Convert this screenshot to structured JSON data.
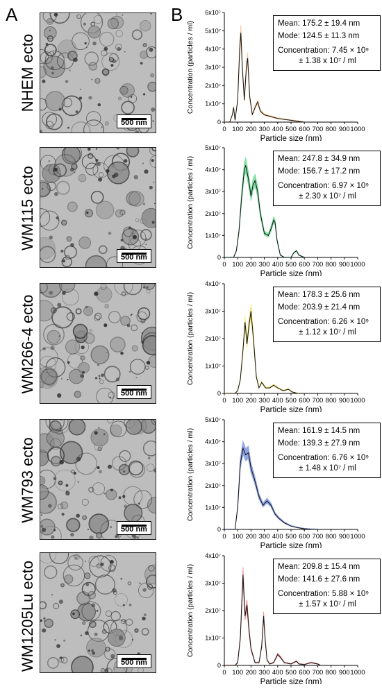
{
  "panel_labels": {
    "a": "A",
    "b": "B"
  },
  "scale_bar_label": "500 nm",
  "samples": [
    {
      "label": "NHEM ecto",
      "color": "#f0a050"
    },
    {
      "label": "WM115 ecto",
      "color": "#22c55e"
    },
    {
      "label": "WM266-4 ecto",
      "color": "#e8d21a"
    },
    {
      "label": "WM793 ecto",
      "color": "#3a5fcd"
    },
    {
      "label": "WM1205Lu ecto",
      "color": "#d0393a"
    }
  ],
  "chart_data": [
    {
      "type": "line",
      "sample": "NHEM ecto",
      "xlabel": "Particle size (nm)",
      "ylabel": "Concentration (particles / ml)",
      "xlim": [
        0,
        1000
      ],
      "ylim": [
        0,
        60000000
      ],
      "xticks": [
        "0",
        "100",
        "200",
        "300",
        "400",
        "500",
        "600",
        "700",
        "800",
        "900",
        "1000"
      ],
      "yticks": [
        "0",
        "1x10⁷",
        "2x10⁷",
        "3x10⁷",
        "4x10⁷",
        "5x10⁷",
        "6x10⁷"
      ],
      "stats": {
        "mean": "Mean: 175.2 ± 19.4 nm",
        "mode": "Mode: 124.5 ± 11.3 nm",
        "conc1": "Concentration: 7.45 × 10⁹",
        "conc2": "± 1.38 x 10⁷ / ml"
      },
      "x": [
        0,
        40,
        60,
        70,
        80,
        100,
        115,
        124,
        135,
        150,
        165,
        175,
        190,
        210,
        230,
        250,
        270,
        300,
        350,
        400,
        450,
        500,
        550,
        600
      ],
      "y": [
        0,
        0,
        4000000,
        8000000,
        1000000,
        12000000,
        40000000,
        49000000,
        30000000,
        12000000,
        30000000,
        35000000,
        14000000,
        4000000,
        8000000,
        11000000,
        6000000,
        4000000,
        3000000,
        2000000,
        1500000,
        1000000,
        500000,
        0
      ]
    },
    {
      "type": "line",
      "sample": "WM115 ecto",
      "xlabel": "Particle size (nm)",
      "ylabel": "Concentration (particles / ml)",
      "xlim": [
        0,
        1000
      ],
      "ylim": [
        0,
        50000000
      ],
      "xticks": [
        "0",
        "100",
        "200",
        "300",
        "400",
        "500",
        "600",
        "700",
        "800",
        "900",
        "1000"
      ],
      "yticks": [
        "0",
        "1x10⁷",
        "2x10⁷",
        "3x10⁷",
        "4x10⁷",
        "5x10⁷"
      ],
      "stats": {
        "mean": "Mean: 247.8 ± 34.9 nm",
        "mode": "Mode: 156.7 ± 17.2 nm",
        "conc1": "Concentration: 6.97 × 10⁹",
        "conc2": "± 2.30 x 10⁷ / ml"
      },
      "x": [
        0,
        70,
        90,
        110,
        130,
        150,
        160,
        180,
        200,
        215,
        230,
        250,
        270,
        300,
        330,
        350,
        370,
        380,
        395,
        420,
        450,
        500,
        520,
        540,
        560,
        600
      ],
      "y": [
        0,
        0,
        3000000,
        12000000,
        28000000,
        40000000,
        42000000,
        36000000,
        28000000,
        33000000,
        35000000,
        30000000,
        20000000,
        11000000,
        10000000,
        13000000,
        17000000,
        16000000,
        8000000,
        1000000,
        0,
        0,
        2000000,
        3000000,
        1000000,
        0
      ]
    },
    {
      "type": "line",
      "sample": "WM266-4 ecto",
      "xlabel": "Particle size (nm)",
      "ylabel": "Concentration (particles / ml)",
      "xlim": [
        0,
        1000
      ],
      "ylim": [
        0,
        40000000
      ],
      "xticks": [
        "0",
        "100",
        "200",
        "300",
        "400",
        "500",
        "600",
        "700",
        "800",
        "900",
        "1000"
      ],
      "yticks": [
        "0",
        "1x10⁷",
        "2x10⁷",
        "3x10⁷",
        "4x10⁷"
      ],
      "stats": {
        "mean": "Mean: 178.3 ± 25.6 nm",
        "mode": "Mode: 203.9 ± 21.4 nm",
        "conc1": "Concentration: 6.26 × 10⁹",
        "conc2": "± 1.12 x 10⁷ / ml"
      },
      "x": [
        0,
        80,
        100,
        120,
        140,
        155,
        170,
        185,
        200,
        220,
        240,
        260,
        280,
        310,
        340,
        370,
        400,
        440,
        480,
        510,
        550,
        600
      ],
      "y": [
        0,
        0,
        1000000,
        5000000,
        16000000,
        26000000,
        18000000,
        25000000,
        30000000,
        19000000,
        6000000,
        2000000,
        4000000,
        2000000,
        2000000,
        3000000,
        2000000,
        1000000,
        1500000,
        500000,
        0,
        0
      ]
    },
    {
      "type": "line",
      "sample": "WM793 ecto",
      "xlabel": "Particle size (nm)",
      "ylabel": "Concentration (particles / ml)",
      "xlim": [
        0,
        1000
      ],
      "ylim": [
        0,
        50000000
      ],
      "xticks": [
        "0",
        "100",
        "200",
        "300",
        "400",
        "500",
        "600",
        "700",
        "800",
        "900",
        "1000"
      ],
      "yticks": [
        "0",
        "1x10⁷",
        "2x10⁷",
        "3x10⁷",
        "4x10⁷",
        "5x10⁷"
      ],
      "stats": {
        "mean": "Mean: 161.9 ± 14.5 nm",
        "mode": "Mode: 139.3 ± 27.9 nm",
        "conc1": "Concentration: 6.76 × 10⁹",
        "conc2": "± 1.48 x 10⁷ / ml"
      },
      "x": [
        0,
        80,
        100,
        120,
        140,
        160,
        180,
        200,
        230,
        260,
        290,
        320,
        350,
        380,
        410,
        450,
        500,
        550,
        600,
        650,
        700
      ],
      "y": [
        0,
        0,
        10000000,
        30000000,
        37000000,
        34000000,
        35000000,
        28000000,
        22000000,
        15000000,
        11000000,
        13000000,
        11000000,
        7000000,
        5000000,
        3000000,
        1500000,
        800000,
        300000,
        100000,
        0
      ]
    },
    {
      "type": "line",
      "sample": "WM1205Lu ecto",
      "xlabel": "Particle size (nm)",
      "ylabel": "Concentration (particles / ml)",
      "xlim": [
        0,
        1000
      ],
      "ylim": [
        0,
        40000000
      ],
      "xticks": [
        "0",
        "100",
        "200",
        "300",
        "400",
        "500",
        "600",
        "700",
        "800",
        "900",
        "1000"
      ],
      "yticks": [
        "0",
        "1x10⁷",
        "2x10⁷",
        "3x10⁷",
        "4x10⁷"
      ],
      "stats": {
        "mean": "Mean: 209.8 ± 15.4 nm",
        "mode": "Mode: 141.6 ± 27.6 nm",
        "conc1": "Concentration: 5.88 × 10⁹",
        "conc2": "± 1.57 x 10⁷ / ml"
      },
      "x": [
        0,
        80,
        100,
        120,
        140,
        155,
        170,
        185,
        200,
        230,
        260,
        280,
        295,
        305,
        320,
        340,
        370,
        400,
        420,
        450,
        500,
        520,
        540,
        560,
        600,
        650,
        700,
        720
      ],
      "y": [
        0,
        0,
        1000000,
        10000000,
        33000000,
        18000000,
        22000000,
        13000000,
        6000000,
        1000000,
        1000000,
        7000000,
        18000000,
        10000000,
        2000000,
        500000,
        1000000,
        4000000,
        3000000,
        1000000,
        500000,
        1000000,
        1500000,
        500000,
        300000,
        1000000,
        500000,
        0
      ]
    }
  ]
}
